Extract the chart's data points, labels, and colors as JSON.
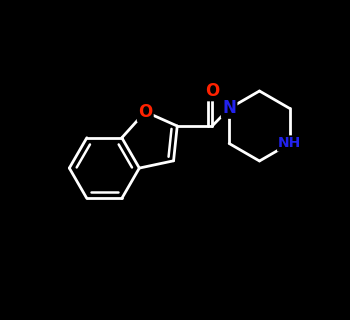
{
  "background_color": "#000000",
  "bond_color": "#ffffff",
  "bond_width": 2.0,
  "atom_colors": {
    "O": "#ff2200",
    "N": "#2222ee",
    "NH": "#2222ee"
  },
  "font_size_atom": 12,
  "font_size_nh": 10,
  "xlim": [
    -2.6,
    2.6
  ],
  "ylim": [
    -1.9,
    1.7
  ]
}
